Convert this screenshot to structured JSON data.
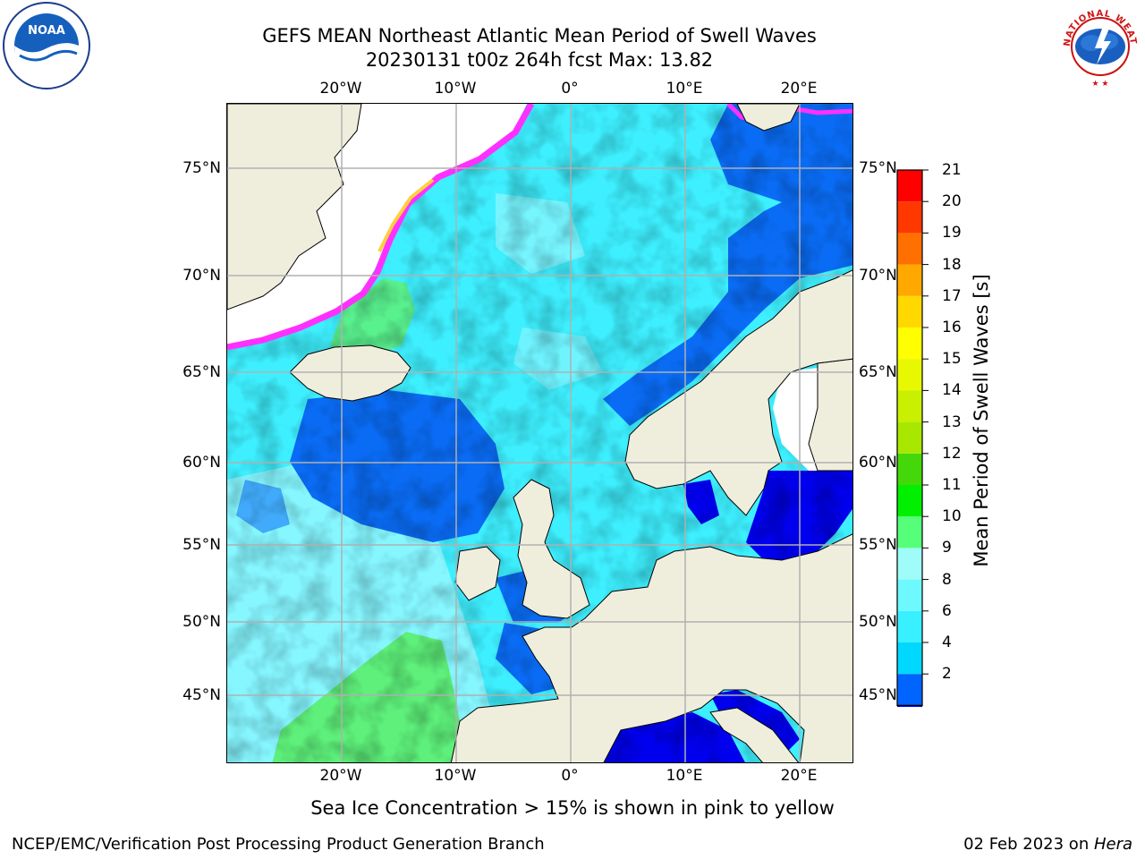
{
  "title": {
    "line1": "GEFS MEAN Northeast Atlantic Mean Period of Swell Waves",
    "line2": "20230131 t00z 264h fcst   Max: 13.82"
  },
  "map": {
    "lon_labels": [
      "20°W",
      "10°W",
      "0°",
      "10°E",
      "20°E"
    ],
    "lat_labels": [
      "75°N",
      "70°N",
      "65°N",
      "60°N",
      "55°N",
      "50°N",
      "45°N"
    ]
  },
  "colorbar": {
    "label": "Mean Period of Swell Waves [s]",
    "ticks": [
      "2",
      "4",
      "6",
      "8",
      "9",
      "10",
      "11",
      "12",
      "13",
      "14",
      "15",
      "16",
      "17",
      "18",
      "19",
      "20",
      "21"
    ],
    "colors": [
      "#0064ff",
      "#00d8ff",
      "#38f0ff",
      "#6ef8ff",
      "#9ffcf8",
      "#55ff7a",
      "#00f000",
      "#44d80a",
      "#a8e800",
      "#c8f000",
      "#e8f800",
      "#ffff00",
      "#ffd800",
      "#ffa800",
      "#ff7000",
      "#ff3800",
      "#ff0000"
    ],
    "extend_color": "#0000ff"
  },
  "palette": {
    "land": "#efeedd",
    "ocean_mid": "#3ef0ff",
    "ocean_low": "#0a6cf5",
    "ocean_min": "#0000ee",
    "ocean_swell": "#9ff8ff",
    "ocean_long": "#5ef07a",
    "ice_edge": "#ff30ff",
    "ice_yellow": "#ffd040",
    "grid": "#b0b0b0"
  },
  "caption": "Sea Ice Concentration > 15% is shown in pink to yellow",
  "footer": {
    "left": "NCEP/EMC/Verification Post Processing Product Generation Branch",
    "date": "02 Feb 2023 on ",
    "host": "Hera"
  },
  "logos": {
    "noaa": {
      "abbr": "NOAA"
    },
    "nws": {
      "text": "NATIONAL WEATHER SERVICE"
    }
  }
}
